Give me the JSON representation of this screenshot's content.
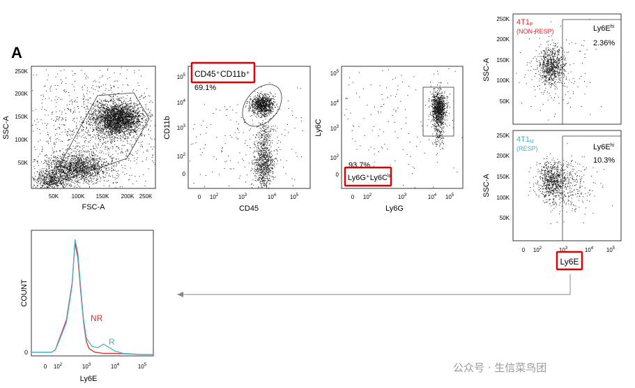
{
  "panel_label": "A",
  "watermark": "公众号 · 生信菜鸟团",
  "colors": {
    "nr": "#e8262b",
    "r": "#3fb3cc",
    "highlight": "#e00000",
    "dots": "#111111",
    "arrow": "#888888"
  },
  "chart_data": [
    {
      "type": "scatter",
      "id": "p1",
      "xlabel": "FSC-A",
      "ylabel": "SSC-A",
      "x_ticks": [
        "50K",
        "100K",
        "150K",
        "200K",
        "250K"
      ],
      "y_ticks": [
        "250K",
        "200K",
        "150K",
        "100K",
        "50K"
      ],
      "xlim": [
        0,
        262144
      ],
      "ylim": [
        0,
        262144
      ],
      "gate": "polygon around main cell population",
      "clusters": [
        {
          "x": 165000,
          "y": 140000,
          "n": 2600
        },
        {
          "x": 70000,
          "y": 45000,
          "n": 1400
        },
        {
          "x": 20000,
          "y": 10000,
          "n": 500
        }
      ]
    },
    {
      "type": "scatter",
      "id": "p2",
      "xlabel": "CD45",
      "ylabel": "CD11b",
      "x_ticks": [
        "0",
        "10^2",
        "10^3",
        "10^4",
        "10^5"
      ],
      "y_ticks": [
        "10^5",
        "10^4",
        "10^3",
        "10^2",
        "0"
      ],
      "gate_label": "CD45⁺CD11b⁺",
      "gate_value": "69.1%",
      "clusters": [
        {
          "x": "~10^4",
          "y": "~10^4",
          "n": 900
        },
        {
          "x": "~10^4",
          "y": "<10^2",
          "n": 700
        }
      ]
    },
    {
      "type": "scatter",
      "id": "p3",
      "xlabel": "Ly6G",
      "ylabel": "Ly6C",
      "x_ticks": [
        "0",
        "10^2",
        "10^3",
        "10^4",
        "10^5"
      ],
      "y_ticks": [
        "10^5",
        "10^4",
        "10^3",
        "10^2",
        "0"
      ],
      "gate_value": "93.7%",
      "gate_label": "Ly6G⁺Ly6C",
      "gate_label_sup": "lo",
      "clusters": [
        {
          "x": "~10^4",
          "y": "~10^4",
          "n": 1000
        }
      ]
    },
    {
      "type": "scatter",
      "id": "p4",
      "title": "4T1",
      "title_sub": "P",
      "subtitle": "(NON-RESP)",
      "ylabel": "SSC-A",
      "y_ticks": [
        "250K",
        "200K",
        "150K",
        "100K",
        "50K"
      ],
      "gate_label": "Ly6E",
      "gate_label_sup": "hi",
      "gate_value": "2.36%"
    },
    {
      "type": "scatter",
      "id": "p5",
      "title": "4T1",
      "title_sub": "M",
      "subtitle": "(RESP)",
      "ylabel": "SSC-A",
      "xlabel": "Ly6E",
      "x_ticks": [
        "0",
        "10^2",
        "10^3",
        "10^4",
        "10^5"
      ],
      "y_ticks": [
        "250K",
        "200K",
        "150K",
        "100K",
        "50K"
      ],
      "gate_label": "Ly6E",
      "gate_label_sup": "hi",
      "gate_value": "10.3%"
    },
    {
      "type": "line",
      "id": "hist",
      "xlabel": "Ly6E",
      "ylabel": "COUNT",
      "x_ticks": [
        "0",
        "10^2",
        "10^3",
        "10^4",
        "10^5"
      ],
      "y_ticks": [
        "0"
      ],
      "series": [
        {
          "name": "NR",
          "color": "#e8262b",
          "x": [
            0,
            1.0,
            1.6,
            2.0,
            2.3,
            2.5,
            2.6,
            2.7,
            2.8,
            2.9,
            3.0,
            3.1,
            3.3,
            3.6,
            4.0,
            5.0
          ],
          "y": [
            0.02,
            0.02,
            0.04,
            0.1,
            0.3,
            0.62,
            0.97,
            0.84,
            0.55,
            0.28,
            0.11,
            0.05,
            0.02,
            0.01,
            0.01,
            0.0
          ]
        },
        {
          "name": "R",
          "color": "#3fb3cc",
          "x": [
            0,
            1.0,
            1.6,
            2.0,
            2.3,
            2.5,
            2.6,
            2.7,
            2.8,
            2.9,
            3.0,
            3.2,
            3.4,
            3.6,
            3.8,
            4.0,
            4.3,
            5.0
          ],
          "y": [
            0.02,
            0.02,
            0.04,
            0.09,
            0.28,
            0.6,
            1.0,
            0.88,
            0.58,
            0.3,
            0.14,
            0.07,
            0.06,
            0.09,
            0.06,
            0.03,
            0.01,
            0.0
          ]
        }
      ]
    }
  ]
}
